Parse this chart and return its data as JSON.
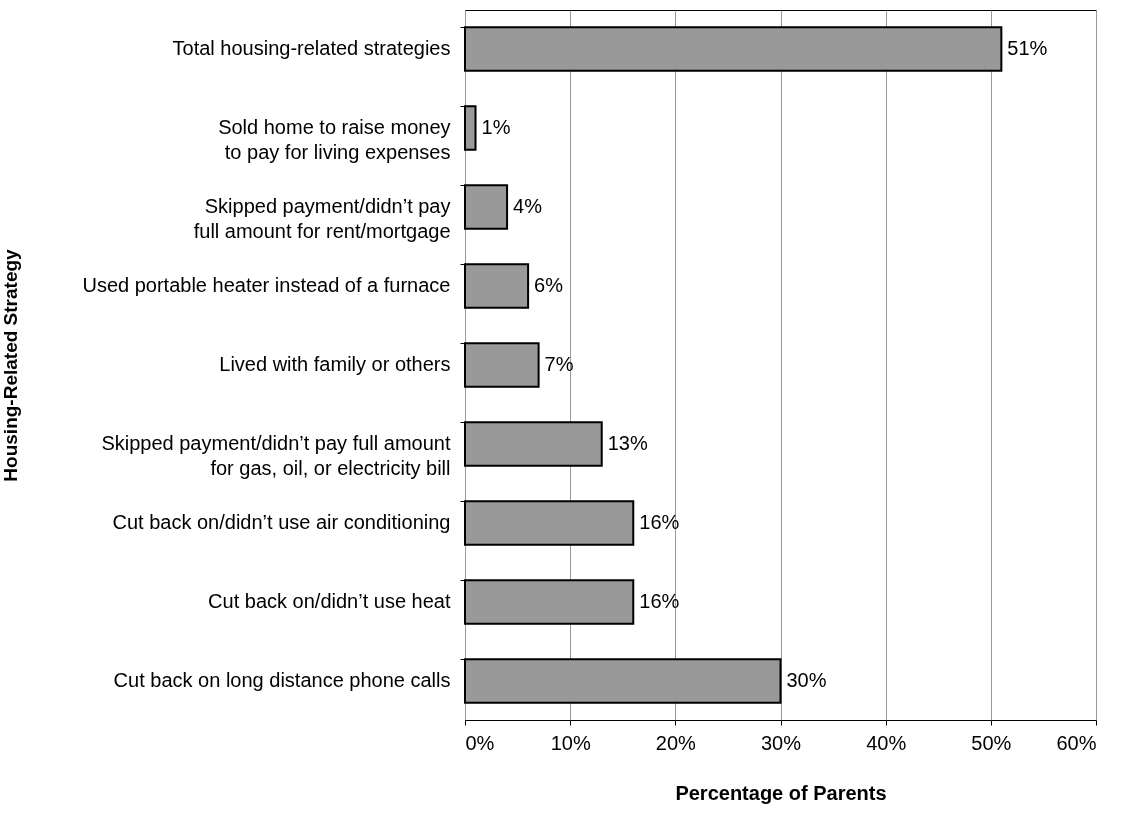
{
  "chart_data": {
    "type": "bar",
    "orientation": "horizontal",
    "xlabel": "Percentage of Parents",
    "ylabel": "Housing-Related Strategy",
    "categories": [
      "Total housing-related strategies",
      "Sold home to raise money to pay for living expenses",
      "Skipped payment/didn’t pay full amount for rent/mortgage",
      "Used portable heater instead of a furnace",
      "Lived with family or others",
      "Skipped payment/didn’t pay full amount for gas, oil, or electricity bill",
      "Cut back on/didn’t use air conditioning",
      "Cut back on/didn’t use heat",
      "Cut back on long distance phone calls"
    ],
    "values": [
      51,
      1,
      4,
      6,
      7,
      13,
      16,
      16,
      30
    ],
    "value_labels": [
      "51%",
      "1%",
      "4%",
      "6%",
      "7%",
      "13%",
      "16%",
      "16%",
      "30%"
    ],
    "color": "#999999",
    "xlim": [
      0,
      60
    ],
    "xticks": [
      {
        "value": 0,
        "label": "0%"
      },
      {
        "value": 10,
        "label": "10%"
      },
      {
        "value": 20,
        "label": "20%"
      },
      {
        "value": 30,
        "label": "30%"
      },
      {
        "value": 40,
        "label": "40%"
      },
      {
        "value": 50,
        "label": "50%"
      },
      {
        "value": 60,
        "label": "60%"
      }
    ],
    "grid": "x"
  }
}
